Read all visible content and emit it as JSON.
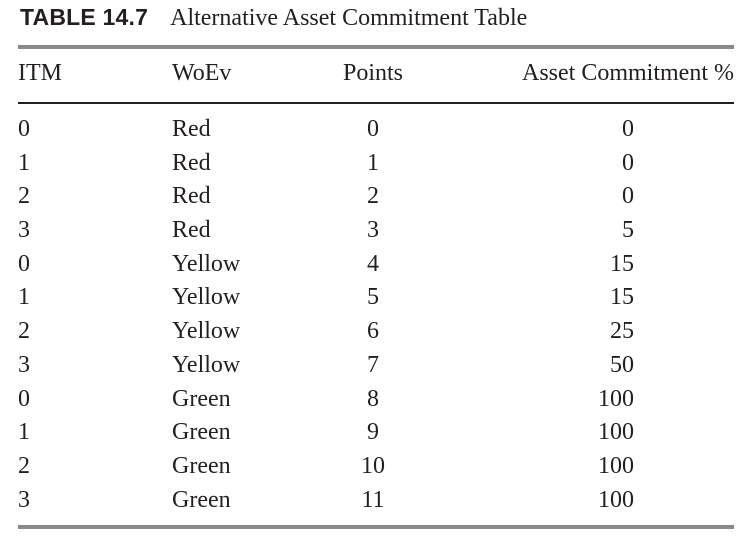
{
  "caption": {
    "label": "TABLE 14.7",
    "title": "Alternative Asset Commitment Table"
  },
  "table": {
    "headers": {
      "itm": "ITM",
      "woev": "WoEv",
      "points": "Points",
      "asset": "Asset Commitment %"
    },
    "rows": [
      {
        "itm": "0",
        "woev": "Red",
        "points": "0",
        "asset": "0"
      },
      {
        "itm": "1",
        "woev": "Red",
        "points": "1",
        "asset": "0"
      },
      {
        "itm": "2",
        "woev": "Red",
        "points": "2",
        "asset": "0"
      },
      {
        "itm": "3",
        "woev": "Red",
        "points": "3",
        "asset": "5"
      },
      {
        "itm": "0",
        "woev": "Yellow",
        "points": "4",
        "asset": "15"
      },
      {
        "itm": "1",
        "woev": "Yellow",
        "points": "5",
        "asset": "15"
      },
      {
        "itm": "2",
        "woev": "Yellow",
        "points": "6",
        "asset": "25"
      },
      {
        "itm": "3",
        "woev": "Yellow",
        "points": "7",
        "asset": "50"
      },
      {
        "itm": "0",
        "woev": "Green",
        "points": "8",
        "asset": "100"
      },
      {
        "itm": "1",
        "woev": "Green",
        "points": "9",
        "asset": "100"
      },
      {
        "itm": "2",
        "woev": "Green",
        "points": "10",
        "asset": "100"
      },
      {
        "itm": "3",
        "woev": "Green",
        "points": "11",
        "asset": "100"
      }
    ]
  }
}
